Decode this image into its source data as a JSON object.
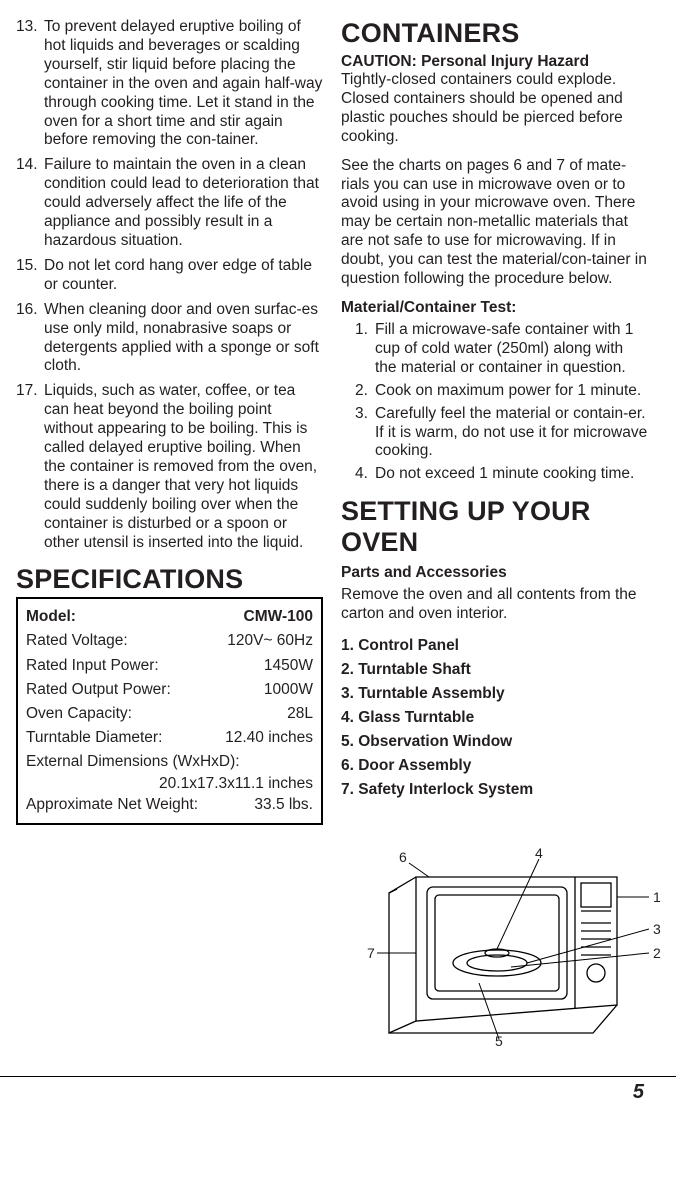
{
  "left": {
    "instructions": [
      {
        "n": "13.",
        "t": "To prevent delayed eruptive boiling of hot liquids and beverages or scalding yourself, stir liquid before placing the container in the oven and again half-way through cooking time. Let it stand in the oven for a short time and stir again before removing the con-tainer."
      },
      {
        "n": "14.",
        "t": "Failure to maintain the oven in a clean condition could lead to deterioration that could adversely affect the life of the appliance and possibly result in a hazardous situation."
      },
      {
        "n": "15.",
        "t": "Do not let cord hang over edge of table or counter."
      },
      {
        "n": "16.",
        "t": "When cleaning door and oven surfac-es use only mild, nonabrasive soaps or detergents applied with a sponge or soft cloth."
      },
      {
        "n": "17.",
        "t": "Liquids, such as water, coffee, or tea can heat beyond the boiling point without appearing to be boiling. This is called delayed eruptive boiling. When the container is removed from the oven, there is a danger that very hot liquids could suddenly boiling over when the container is disturbed or a spoon or other utensil is inserted into the liquid."
      }
    ],
    "spec_heading": "SPECIFICATIONS",
    "specs": {
      "model_label": "Model:",
      "model_value": "CMW-100",
      "rows": [
        {
          "l": "Rated Voltage:",
          "v": "120V~ 60Hz"
        },
        {
          "l": "Rated Input Power:",
          "v": "1450W"
        },
        {
          "l": "Rated Output Power:",
          "v": "1000W"
        },
        {
          "l": "Oven Capacity:",
          "v": "28L"
        },
        {
          "l": "Turntable Diameter:",
          "v": "12.40 inches"
        }
      ],
      "ext_dim_label": "External Dimensions (WxHxD):",
      "ext_dim_value": "20.1x17.3x11.1 inches",
      "weight_label": "Approximate Net Weight:",
      "weight_value": "33.5 lbs."
    }
  },
  "right": {
    "containers_heading": "CONTAINERS",
    "caution": "CAUTION: Personal Injury Hazard",
    "p1": "Tightly-closed containers could explode. Closed containers should be opened and plastic pouches should be pierced before cooking.",
    "p2": "See the charts on pages 6 and 7 of mate-rials you can use in microwave oven or to avoid using in your microwave oven. There may be certain non-metallic materials that are not safe to use for microwaving. If in doubt, you can test the material/con-tainer in question following the procedure below.",
    "test_heading": "Material/Container Test:",
    "test_steps": [
      {
        "n": "1.",
        "t": "Fill a microwave-safe container with 1 cup of cold water (250ml) along with the material or container in question."
      },
      {
        "n": "2.",
        "t": "Cook on maximum power for 1 minute."
      },
      {
        "n": "3.",
        "t": "Carefully feel the material or contain-er. If it is warm, do not use it for microwave cooking."
      },
      {
        "n": "4.",
        "t": "Do not exceed 1 minute cooking time."
      }
    ],
    "setup_heading": "SETTING UP YOUR OVEN",
    "parts_sub": "Parts and Accessories",
    "parts_intro": "Remove the oven and all contents from the carton and oven interior.",
    "parts": [
      "1. Control Panel",
      "2. Turntable Shaft",
      "3. Turntable Assembly",
      "4. Glass Turntable",
      "5. Observation Window",
      "6. Door Assembly",
      "7. Safety Interlock System"
    ]
  },
  "diagram": {
    "callouts": [
      "1",
      "2",
      "3",
      "4",
      "5",
      "6",
      "7"
    ]
  },
  "page_number": "5"
}
